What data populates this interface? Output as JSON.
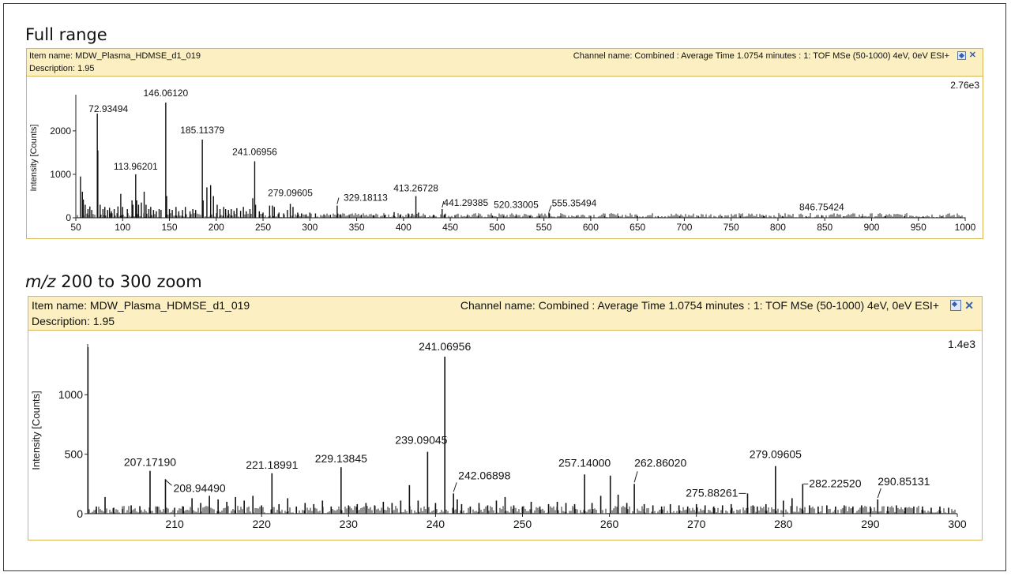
{
  "titles": {
    "full_range": "Full range",
    "zoom_prefix": "m/z",
    "zoom_rest": " 200 to 300 zoom"
  },
  "panels": [
    {
      "item_name": "Item name: MDW_Plasma_HDMSE_d1_019",
      "description": "Description: 1.95",
      "channel_name": "Channel name: Combined : Average Time 1.0754 minutes : 1: TOF MSe (50-1000) 4eV, 0eV ESI+"
    },
    {
      "item_name": "Item name: MDW_Plasma_HDMSE_d1_019",
      "description": "Description: 1.95",
      "channel_name": "Channel name: Combined : Average Time 1.0754 minutes : 1: TOF MSe (50-1000) 4eV, 0eV ESI+"
    }
  ],
  "icons": {
    "pin": "pin-icon",
    "close": "close-icon"
  },
  "colors": {
    "header_bg": "#fcf0c2",
    "header_border": "#d8b556",
    "line": "#111111"
  },
  "chart_data": [
    {
      "type": "line",
      "ylabel": "Intensity [Counts]",
      "xlabel": "",
      "max_label": "2.76e3",
      "xlim": [
        50,
        1000
      ],
      "ylim": [
        0,
        2760
      ],
      "xticks": [
        50,
        100,
        150,
        200,
        250,
        300,
        350,
        400,
        450,
        500,
        550,
        600,
        650,
        700,
        750,
        800,
        850,
        900,
        950,
        1000
      ],
      "yticks": [
        0,
        1000,
        2000
      ],
      "peaks": [
        [
          55,
          950
        ],
        [
          57,
          600
        ],
        [
          58,
          420
        ],
        [
          60,
          300
        ],
        [
          63,
          200
        ],
        [
          65,
          260
        ],
        [
          67,
          180
        ],
        [
          72.93494,
          2400
        ],
        [
          73.5,
          1550
        ],
        [
          76,
          300
        ],
        [
          79,
          200
        ],
        [
          81,
          250
        ],
        [
          84,
          180
        ],
        [
          86,
          230
        ],
        [
          88,
          150
        ],
        [
          91,
          200
        ],
        [
          95,
          260
        ],
        [
          98,
          550
        ],
        [
          100,
          250
        ],
        [
          105,
          200
        ],
        [
          110,
          400
        ],
        [
          111,
          300
        ],
        [
          113.96201,
          1000
        ],
        [
          115,
          400
        ],
        [
          117,
          300
        ],
        [
          120,
          350
        ],
        [
          123,
          600
        ],
        [
          125,
          300
        ],
        [
          128,
          200
        ],
        [
          130,
          250
        ],
        [
          133,
          180
        ],
        [
          136,
          150
        ],
        [
          139,
          200
        ],
        [
          141,
          180
        ],
        [
          146.0612,
          2650
        ],
        [
          147,
          500
        ],
        [
          150,
          200
        ],
        [
          153,
          180
        ],
        [
          157,
          250
        ],
        [
          160,
          150
        ],
        [
          164,
          180
        ],
        [
          167,
          250
        ],
        [
          172,
          150
        ],
        [
          175,
          200
        ],
        [
          178,
          180
        ],
        [
          185.11379,
          1800
        ],
        [
          186,
          400
        ],
        [
          190,
          700
        ],
        [
          194,
          750
        ],
        [
          197,
          500
        ],
        [
          201,
          300
        ],
        [
          204,
          200
        ],
        [
          208,
          250
        ],
        [
          210,
          200
        ],
        [
          213,
          180
        ],
        [
          216,
          200
        ],
        [
          219,
          160
        ],
        [
          222,
          220
        ],
        [
          226,
          160
        ],
        [
          229,
          250
        ],
        [
          232,
          150
        ],
        [
          236,
          200
        ],
        [
          239,
          450
        ],
        [
          241.06956,
          1300
        ],
        [
          242,
          300
        ],
        [
          246,
          150
        ],
        [
          250,
          120
        ],
        [
          257,
          280
        ],
        [
          260,
          280
        ],
        [
          262,
          250
        ],
        [
          267,
          120
        ],
        [
          272,
          100
        ],
        [
          276,
          180
        ],
        [
          279.09605,
          320
        ],
        [
          282,
          250
        ],
        [
          287,
          120
        ],
        [
          291,
          100
        ],
        [
          296,
          80
        ],
        [
          300,
          120
        ],
        [
          306,
          100
        ],
        [
          315,
          80
        ],
        [
          322,
          70
        ],
        [
          329.18113,
          280
        ],
        [
          333,
          80
        ],
        [
          342,
          60
        ],
        [
          355,
          70
        ],
        [
          368,
          60
        ],
        [
          380,
          60
        ],
        [
          390,
          130
        ],
        [
          397,
          80
        ],
        [
          405,
          100
        ],
        [
          409,
          90
        ],
        [
          413.26728,
          500
        ],
        [
          416,
          120
        ],
        [
          423,
          60
        ],
        [
          432,
          70
        ],
        [
          441.29385,
          200
        ],
        [
          444,
          80
        ],
        [
          455,
          60
        ],
        [
          468,
          50
        ],
        [
          480,
          50
        ],
        [
          495,
          50
        ],
        [
          507,
          40
        ],
        [
          520.33005,
          80
        ],
        [
          535,
          40
        ],
        [
          545,
          40
        ],
        [
          555.35494,
          120
        ],
        [
          568,
          40
        ],
        [
          585,
          40
        ],
        [
          600,
          40
        ],
        [
          615,
          40
        ],
        [
          630,
          40
        ],
        [
          650,
          40
        ],
        [
          672,
          40
        ],
        [
          695,
          40
        ],
        [
          715,
          40
        ],
        [
          740,
          40
        ],
        [
          760,
          40
        ],
        [
          785,
          40
        ],
        [
          805,
          40
        ],
        [
          830,
          40
        ],
        [
          846.75424,
          60
        ],
        [
          870,
          35
        ],
        [
          890,
          35
        ],
        [
          915,
          35
        ],
        [
          935,
          35
        ],
        [
          955,
          35
        ],
        [
          975,
          35
        ],
        [
          995,
          30
        ]
      ],
      "annotations": [
        {
          "x": 72.93494,
          "label": "72.93494"
        },
        {
          "x": 146.0612,
          "label": "146.06120"
        },
        {
          "x": 113.96201,
          "label": "113.96201"
        },
        {
          "x": 185.11379,
          "label": "185.11379"
        },
        {
          "x": 241.06956,
          "label": "241.06956"
        },
        {
          "x": 279.09605,
          "label": "279.09605"
        },
        {
          "x": 329.18113,
          "label": "329.18113"
        },
        {
          "x": 413.26728,
          "label": "413.26728"
        },
        {
          "x": 441.29385,
          "label": "441.29385"
        },
        {
          "x": 520.33005,
          "label": "520.33005"
        },
        {
          "x": 555.35494,
          "label": "555.35494"
        },
        {
          "x": 846.75424,
          "label": "846.75424"
        }
      ]
    },
    {
      "type": "line",
      "ylabel": "Intensity [Counts]",
      "xlabel": "",
      "max_label": "1.4e3",
      "xlim": [
        200,
        300
      ],
      "ylim": [
        0,
        1400
      ],
      "xticks": [
        210,
        220,
        230,
        240,
        250,
        260,
        270,
        280,
        290,
        300
      ],
      "yticks": [
        0,
        500,
        1000
      ],
      "peaks": [
        [
          200.03,
          1400
        ],
        [
          201,
          60
        ],
        [
          202,
          140
        ],
        [
          203,
          50
        ],
        [
          204,
          40
        ],
        [
          205,
          70
        ],
        [
          206,
          60
        ],
        [
          207.1719,
          360
        ],
        [
          208,
          60
        ],
        [
          208.9449,
          290
        ],
        [
          210,
          50
        ],
        [
          211,
          60
        ],
        [
          212,
          130
        ],
        [
          213,
          90
        ],
        [
          214,
          150
        ],
        [
          215,
          120
        ],
        [
          216,
          100
        ],
        [
          217,
          140
        ],
        [
          218,
          110
        ],
        [
          219,
          150
        ],
        [
          220,
          70
        ],
        [
          221.18991,
          340
        ],
        [
          222,
          80
        ],
        [
          223,
          130
        ],
        [
          224,
          60
        ],
        [
          225,
          90
        ],
        [
          226,
          80
        ],
        [
          227,
          110
        ],
        [
          228,
          60
        ],
        [
          229.13845,
          390
        ],
        [
          230,
          70
        ],
        [
          231,
          80
        ],
        [
          232,
          90
        ],
        [
          233,
          70
        ],
        [
          234,
          100
        ],
        [
          235,
          90
        ],
        [
          236,
          110
        ],
        [
          237,
          240
        ],
        [
          238,
          110
        ],
        [
          239.09045,
          520
        ],
        [
          240,
          90
        ],
        [
          241.06956,
          1320
        ],
        [
          242.06898,
          170
        ],
        [
          242.5,
          120
        ],
        [
          243,
          80
        ],
        [
          244,
          60
        ],
        [
          245,
          90
        ],
        [
          246,
          70
        ],
        [
          247,
          110
        ],
        [
          248,
          140
        ],
        [
          249,
          70
        ],
        [
          250,
          60
        ],
        [
          251,
          100
        ],
        [
          252,
          60
        ],
        [
          253,
          80
        ],
        [
          254,
          100
        ],
        [
          255,
          90
        ],
        [
          256,
          80
        ],
        [
          257.14,
          330
        ],
        [
          258,
          90
        ],
        [
          259,
          150
        ],
        [
          260.1,
          320
        ],
        [
          261,
          160
        ],
        [
          262,
          90
        ],
        [
          262.8602,
          250
        ],
        [
          264,
          80
        ],
        [
          265,
          70
        ],
        [
          266,
          60
        ],
        [
          267,
          80
        ],
        [
          268,
          70
        ],
        [
          269,
          60
        ],
        [
          270,
          80
        ],
        [
          271,
          70
        ],
        [
          272,
          60
        ],
        [
          273,
          70
        ],
        [
          274,
          80
        ],
        [
          275.88261,
          170
        ],
        [
          276.5,
          70
        ],
        [
          277,
          60
        ],
        [
          278,
          80
        ],
        [
          279.09605,
          400
        ],
        [
          280,
          110
        ],
        [
          281,
          130
        ],
        [
          282.2252,
          250
        ],
        [
          283,
          70
        ],
        [
          284,
          60
        ],
        [
          285,
          70
        ],
        [
          286,
          60
        ],
        [
          287,
          70
        ],
        [
          288,
          60
        ],
        [
          289,
          70
        ],
        [
          290,
          60
        ],
        [
          290.85131,
          120
        ],
        [
          292,
          60
        ],
        [
          293,
          70
        ],
        [
          294,
          50
        ],
        [
          295,
          60
        ],
        [
          296,
          60
        ],
        [
          297,
          50
        ],
        [
          298,
          60
        ],
        [
          299,
          50
        ]
      ],
      "annotations": [
        {
          "x": 207.1719,
          "label": "207.17190"
        },
        {
          "x": 208.9449,
          "label": "208.94490"
        },
        {
          "x": 221.18991,
          "label": "221.18991"
        },
        {
          "x": 229.13845,
          "label": "229.13845"
        },
        {
          "x": 239.09045,
          "label": "239.09045"
        },
        {
          "x": 241.06956,
          "label": "241.06956"
        },
        {
          "x": 242.06898,
          "label": "242.06898"
        },
        {
          "x": 257.14,
          "label": "257.14000"
        },
        {
          "x": 262.8602,
          "label": "262.86020"
        },
        {
          "x": 275.88261,
          "label": "275.88261"
        },
        {
          "x": 279.09605,
          "label": "279.09605"
        },
        {
          "x": 282.2252,
          "label": "282.22520"
        },
        {
          "x": 290.85131,
          "label": "290.85131"
        }
      ]
    }
  ]
}
